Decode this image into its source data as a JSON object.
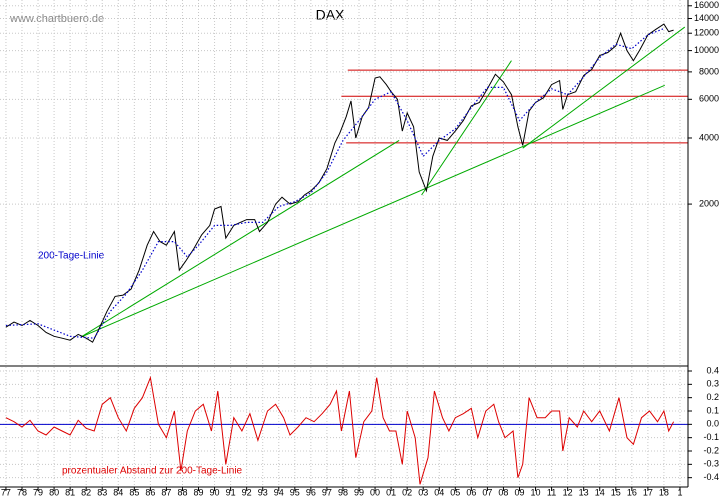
{
  "chart_data": [
    {
      "type": "line",
      "title": "DAX",
      "source": "www.chartbuero.de",
      "log_scale": true,
      "grid": true,
      "xlim": [
        1976.63,
        2019.5
      ],
      "ylim": [
        370,
        17000
      ],
      "yticks": [
        16000,
        14000,
        12000,
        10000,
        8000,
        6000,
        4000,
        2000
      ],
      "series": [
        {
          "name": "DAX",
          "color": "#000000",
          "x": [
            1977.0,
            1977.5,
            1978.0,
            1978.5,
            1979.0,
            1979.5,
            1980.0,
            1980.5,
            1981.0,
            1981.5,
            1982.0,
            1982.4,
            1982.8,
            1983.3,
            1983.8,
            1984.3,
            1984.8,
            1985.3,
            1985.8,
            1986.2,
            1986.6,
            1987.0,
            1987.5,
            1987.8,
            1988.2,
            1988.7,
            1989.2,
            1989.7,
            1990.0,
            1990.4,
            1990.7,
            1991.2,
            1991.6,
            1992.0,
            1992.5,
            1992.8,
            1993.3,
            1993.8,
            1994.2,
            1994.7,
            1995.2,
            1995.6,
            1996.0,
            1996.5,
            1997.0,
            1997.5,
            1997.8,
            1998.2,
            1998.5,
            1998.8,
            1999.2,
            1999.6,
            2000.0,
            2000.3,
            2000.7,
            2001.0,
            2001.4,
            2001.7,
            2002.0,
            2002.4,
            2002.75,
            2003.2,
            2003.6,
            2004.0,
            2004.5,
            2005.0,
            2005.5,
            2006.0,
            2006.5,
            2007.0,
            2007.5,
            2008.0,
            2008.5,
            2008.9,
            2009.2,
            2009.6,
            2010.0,
            2010.5,
            2011.0,
            2011.5,
            2011.7,
            2012.0,
            2012.5,
            2013.0,
            2013.5,
            2014.0,
            2014.5,
            2015.0,
            2015.3,
            2015.7,
            2016.1,
            2016.5,
            2017.0,
            2017.5,
            2018.0,
            2018.3,
            2018.6
          ],
          "values": [
            550,
            580,
            560,
            590,
            560,
            520,
            500,
            490,
            480,
            510,
            490,
            470,
            540,
            650,
            760,
            770,
            820,
            1000,
            1300,
            1500,
            1350,
            1300,
            1500,
            1000,
            1100,
            1250,
            1450,
            1600,
            1900,
            1950,
            1400,
            1600,
            1650,
            1700,
            1700,
            1500,
            1650,
            2000,
            2150,
            2000,
            2050,
            2200,
            2300,
            2500,
            2900,
            3800,
            4200,
            5000,
            5900,
            4000,
            5000,
            5500,
            7500,
            7600,
            7000,
            6500,
            6000,
            4300,
            5200,
            4500,
            2800,
            2300,
            3300,
            4000,
            3900,
            4300,
            4800,
            5600,
            5800,
            6700,
            7800,
            7200,
            6300,
            4500,
            3700,
            5300,
            5800,
            6100,
            7000,
            7300,
            5400,
            6300,
            6500,
            7700,
            8200,
            9500,
            9800,
            10500,
            12000,
            10000,
            9000,
            10100,
            11800,
            12500,
            13200,
            12200,
            12400
          ]
        },
        {
          "name": "200-Tage-Linie",
          "color": "#0000cc",
          "dashed": true,
          "x": [
            1977.0,
            1979.0,
            1981.0,
            1982.5,
            1983.5,
            1984.5,
            1985.5,
            1986.5,
            1987.5,
            1988.3,
            1989.0,
            1990.0,
            1991.0,
            1992.0,
            1993.0,
            1994.0,
            1995.0,
            1996.0,
            1997.0,
            1998.0,
            1999.0,
            2000.0,
            2001.0,
            2002.0,
            2003.0,
            2004.0,
            2005.0,
            2006.0,
            2007.0,
            2008.0,
            2009.0,
            2010.0,
            2011.0,
            2012.0,
            2013.0,
            2014.0,
            2015.0,
            2016.0,
            2017.0,
            2018.0
          ],
          "values": [
            560,
            570,
            500,
            490,
            650,
            780,
            1000,
            1350,
            1350,
            1150,
            1300,
            1600,
            1600,
            1650,
            1650,
            1950,
            2050,
            2250,
            2800,
            3900,
            4800,
            6000,
            6500,
            4800,
            3300,
            3900,
            4400,
            5500,
            6800,
            6800,
            4800,
            5800,
            6700,
            6300,
            7600,
            9300,
            10700,
            10200,
            11800,
            12600
          ]
        }
      ],
      "lines": [
        {
          "color": "#d00000",
          "x": [
            1998.3,
            2019.5
          ],
          "values": [
            8150,
            8150
          ]
        },
        {
          "color": "#d00000",
          "x": [
            1997.9,
            2019.5
          ],
          "values": [
            6200,
            6200
          ]
        },
        {
          "color": "#d00000",
          "x": [
            1998.2,
            2019.5
          ],
          "values": [
            3800,
            3800
          ]
        },
        {
          "color": "#00aa00",
          "x": [
            1981.7,
            2001.5
          ],
          "values": [
            497,
            3900
          ]
        },
        {
          "color": "#00aa00",
          "x": [
            1981.7,
            2018.05
          ],
          "values": [
            497,
            6950
          ]
        },
        {
          "color": "#00aa00",
          "x": [
            2002.9,
            2008.5
          ],
          "values": [
            2200,
            9000
          ]
        },
        {
          "color": "#00aa00",
          "x": [
            2009.2,
            2019.3
          ],
          "values": [
            3594,
            12800
          ]
        }
      ]
    },
    {
      "type": "line",
      "title": "prozentualer Abstand zur 200-Tage-Linie",
      "grid": true,
      "xlim": [
        1976.63,
        2019.5
      ],
      "ylim": [
        -0.47,
        0.43
      ],
      "baseline": 0,
      "baseline_color": "#0000cc",
      "yticks": [
        0.4,
        0.3,
        0.2,
        0.1,
        {
          "value": 0,
          "label": "0.0"
        },
        -0.1,
        -0.2,
        -0.3,
        -0.4
      ],
      "xticks": [
        {
          "value": 1977,
          "label": "77"
        },
        {
          "value": 1978,
          "label": "78"
        },
        {
          "value": 1979,
          "label": "79"
        },
        {
          "value": 1980,
          "label": "80"
        },
        {
          "value": 1981,
          "label": "81"
        },
        {
          "value": 1982,
          "label": "82"
        },
        {
          "value": 1983,
          "label": "83"
        },
        {
          "value": 1984,
          "label": "84"
        },
        {
          "value": 1985,
          "label": "85"
        },
        {
          "value": 1986,
          "label": "86"
        },
        {
          "value": 1987,
          "label": "87"
        },
        {
          "value": 1988,
          "label": "88"
        },
        {
          "value": 1989,
          "label": "89"
        },
        {
          "value": 1990,
          "label": "90"
        },
        {
          "value": 1991,
          "label": "91"
        },
        {
          "value": 1992,
          "label": "92"
        },
        {
          "value": 1993,
          "label": "93"
        },
        {
          "value": 1994,
          "label": "94"
        },
        {
          "value": 1995,
          "label": "95"
        },
        {
          "value": 1996,
          "label": "96"
        },
        {
          "value": 1997,
          "label": "97"
        },
        {
          "value": 1998,
          "label": "98"
        },
        {
          "value": 1999,
          "label": "99"
        },
        {
          "value": 2000,
          "label": "00"
        },
        {
          "value": 2001,
          "label": "01"
        },
        {
          "value": 2002,
          "label": "02"
        },
        {
          "value": 2003,
          "label": "03"
        },
        {
          "value": 2004,
          "label": "04"
        },
        {
          "value": 2005,
          "label": "05"
        },
        {
          "value": 2006,
          "label": "06"
        },
        {
          "value": 2007,
          "label": "07"
        },
        {
          "value": 2008,
          "label": "08"
        },
        {
          "value": 2009,
          "label": "09"
        },
        {
          "value": 2010,
          "label": "10"
        },
        {
          "value": 2011,
          "label": "11"
        },
        {
          "value": 2012,
          "label": "12"
        },
        {
          "value": 2013,
          "label": "13"
        },
        {
          "value": 2014,
          "label": "14"
        },
        {
          "value": 2015,
          "label": "15"
        },
        {
          "value": 2016,
          "label": "16"
        },
        {
          "value": 2017,
          "label": "17"
        },
        {
          "value": 2018,
          "label": "18"
        },
        {
          "value": 2019,
          "label": "1"
        }
      ],
      "series": [
        {
          "color": "#dd0000",
          "x": [
            1977.0,
            1977.5,
            1978.0,
            1978.5,
            1979.0,
            1979.5,
            1980.0,
            1980.5,
            1981.0,
            1981.5,
            1982.0,
            1982.5,
            1983.0,
            1983.5,
            1984.0,
            1984.5,
            1985.0,
            1985.5,
            1986.0,
            1986.5,
            1987.0,
            1987.5,
            1987.9,
            1988.3,
            1988.8,
            1989.3,
            1989.8,
            1990.2,
            1990.7,
            1991.2,
            1991.7,
            1992.2,
            1992.7,
            1993.3,
            1993.8,
            1994.3,
            1994.7,
            1995.2,
            1995.7,
            1996.2,
            1996.7,
            1997.2,
            1997.6,
            1997.9,
            1998.4,
            1998.8,
            1999.3,
            1999.8,
            2000.1,
            2000.5,
            2000.9,
            2001.3,
            2001.7,
            2002.0,
            2002.5,
            2002.8,
            2003.3,
            2003.7,
            2004.2,
            2004.6,
            2005.0,
            2005.5,
            2006.0,
            2006.4,
            2006.9,
            2007.4,
            2007.7,
            2008.1,
            2008.6,
            2008.9,
            2009.2,
            2009.6,
            2010.1,
            2010.6,
            2011.0,
            2011.5,
            2011.7,
            2012.1,
            2012.6,
            2013.0,
            2013.5,
            2014.0,
            2014.6,
            2015.2,
            2015.7,
            2016.1,
            2016.6,
            2017.1,
            2017.6,
            2018.0,
            2018.3,
            2018.6
          ],
          "values": [
            0.05,
            0.02,
            -0.02,
            0.03,
            -0.05,
            -0.08,
            -0.02,
            -0.05,
            -0.08,
            0.03,
            -0.03,
            -0.05,
            0.15,
            0.2,
            0.05,
            -0.05,
            0.12,
            0.2,
            0.35,
            0.0,
            -0.1,
            0.1,
            -0.35,
            -0.05,
            0.1,
            0.15,
            -0.05,
            0.25,
            -0.3,
            0.05,
            -0.05,
            0.08,
            -0.12,
            0.1,
            0.15,
            0.05,
            -0.08,
            -0.02,
            0.05,
            0.02,
            0.08,
            0.15,
            0.25,
            -0.05,
            0.25,
            -0.25,
            0.02,
            0.1,
            0.35,
            0.05,
            -0.05,
            -0.05,
            -0.3,
            0.1,
            -0.1,
            -0.45,
            -0.25,
            0.25,
            0.05,
            -0.05,
            0.05,
            0.08,
            0.12,
            -0.1,
            0.1,
            0.15,
            0.02,
            -0.1,
            -0.05,
            -0.4,
            -0.3,
            0.2,
            0.05,
            0.05,
            0.1,
            0.1,
            -0.2,
            0.05,
            -0.02,
            0.1,
            0.02,
            0.1,
            -0.05,
            0.2,
            -0.1,
            -0.15,
            0.05,
            0.1,
            0.02,
            0.1,
            -0.05,
            0.02
          ]
        }
      ]
    }
  ]
}
